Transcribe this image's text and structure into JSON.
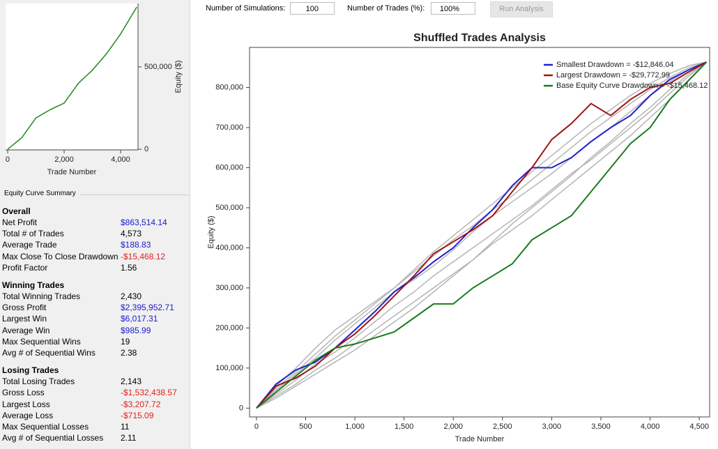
{
  "controls": {
    "simulations_label": "Number of Simulations:",
    "simulations_value": "100",
    "trades_label": "Number of Trades (%):",
    "trades_value": "100%",
    "run_button": "Run Analysis"
  },
  "summary": {
    "title": "Equity Curve Summary",
    "sections": [
      {
        "title": "Overall",
        "rows": [
          {
            "label": "Net Profit",
            "value": "$863,514.14",
            "color": "#1a1ad0"
          },
          {
            "label": "Total # of Trades",
            "value": "4,573",
            "color": "#000000"
          },
          {
            "label": "Average Trade",
            "value": "$188.83",
            "color": "#1a1ad0"
          },
          {
            "label": "Max Close To Close Drawdown",
            "value": "-$15,468.12",
            "color": "#e02020"
          },
          {
            "label": "Profit Factor",
            "value": "1.56",
            "color": "#000000"
          }
        ]
      },
      {
        "title": "Winning Trades",
        "rows": [
          {
            "label": "Total Winning Trades",
            "value": "2,430",
            "color": "#000000"
          },
          {
            "label": "Gross Profit",
            "value": "$2,395,952.71",
            "color": "#1a1ad0"
          },
          {
            "label": "Largest Win",
            "value": "$6,017.31",
            "color": "#1a1ad0"
          },
          {
            "label": "Average Win",
            "value": "$985.99",
            "color": "#1a1ad0"
          },
          {
            "label": "Max Sequential Wins",
            "value": "19",
            "color": "#000000"
          },
          {
            "label": "Avg # of Sequential Wins",
            "value": "2.38",
            "color": "#000000"
          }
        ]
      },
      {
        "title": "Losing Trades",
        "rows": [
          {
            "label": "Total Losing Trades",
            "value": "2,143",
            "color": "#000000"
          },
          {
            "label": "Gross Loss",
            "value": "-$1,532,438.57",
            "color": "#e02020"
          },
          {
            "label": "Largest Loss",
            "value": "-$3,207.72",
            "color": "#e02020"
          },
          {
            "label": "Average Loss",
            "value": "-$715.09",
            "color": "#e02020"
          },
          {
            "label": "Max Sequential Losses",
            "value": "11",
            "color": "#000000"
          },
          {
            "label": "Avg # of Sequential Losses",
            "value": "2.11",
            "color": "#000000"
          }
        ]
      }
    ]
  },
  "chart_data": [
    {
      "type": "line",
      "x_label": "Trade Number",
      "y_label": "Equity ($)",
      "y_axis_side": "right",
      "x": [
        0,
        500,
        1000,
        1500,
        2000,
        2500,
        3000,
        3500,
        4000,
        4573
      ],
      "series": [
        {
          "color": "#1a8a1a",
          "values": [
            0,
            70000,
            190000,
            240000,
            280000,
            400000,
            480000,
            580000,
            700000,
            863514
          ]
        }
      ],
      "xlim": [
        -74,
        4617
      ],
      "ylim": [
        -4000,
        885000
      ],
      "xticks": [
        0,
        {
          "value": 2000,
          "label": "2,000"
        },
        {
          "value": 4000,
          "label": "4,000"
        }
      ],
      "yticks": [
        0,
        {
          "value": 500000,
          "label": "500,000"
        }
      ]
    },
    {
      "type": "line",
      "title": "Shuffled Trades Analysis",
      "x_label": "Trade Number",
      "y_label": "Equity ($)",
      "y_axis_side": "left",
      "legend": "upper right",
      "x": [
        0,
        200,
        400,
        600,
        800,
        1000,
        1200,
        1400,
        1600,
        1800,
        2000,
        2200,
        2400,
        2600,
        2800,
        3000,
        3200,
        3400,
        3600,
        3800,
        4000,
        4200,
        4400,
        4573
      ],
      "series": [
        {
          "color": "#b4b4b4",
          "values": [
            0,
            55000,
            100000,
            150000,
            195000,
            230000,
            265000,
            300000,
            340000,
            380000,
            420000,
            455000,
            495000,
            530000,
            570000,
            610000,
            650000,
            690000,
            725000,
            760000,
            795000,
            825000,
            850000,
            863514
          ]
        },
        {
          "color": "#b4b4b4",
          "values": [
            0,
            30000,
            60000,
            95000,
            125000,
            160000,
            195000,
            230000,
            265000,
            300000,
            335000,
            370000,
            410000,
            445000,
            480000,
            520000,
            560000,
            600000,
            640000,
            680000,
            725000,
            770000,
            820000,
            863514
          ]
        },
        {
          "color": "#b4b4b4",
          "values": [
            0,
            45000,
            85000,
            125000,
            170000,
            210000,
            250000,
            290000,
            320000,
            355000,
            395000,
            440000,
            480000,
            515000,
            550000,
            585000,
            625000,
            665000,
            700000,
            740000,
            780000,
            815000,
            845000,
            863514
          ]
        },
        {
          "color": "#b4b4b4",
          "values": [
            0,
            35000,
            70000,
            110000,
            140000,
            175000,
            215000,
            255000,
            290000,
            330000,
            365000,
            400000,
            435000,
            470000,
            505000,
            545000,
            585000,
            620000,
            660000,
            700000,
            740000,
            785000,
            830000,
            863514
          ]
        },
        {
          "color": "#b4b4b4",
          "values": [
            0,
            50000,
            90000,
            135000,
            180000,
            220000,
            260000,
            300000,
            345000,
            390000,
            430000,
            470000,
            510000,
            550000,
            590000,
            630000,
            670000,
            710000,
            745000,
            780000,
            810000,
            835000,
            855000,
            863514
          ]
        },
        {
          "color": "#b4b4b4",
          "values": [
            0,
            25000,
            55000,
            85000,
            115000,
            145000,
            180000,
            215000,
            250000,
            290000,
            330000,
            370000,
            415000,
            460000,
            500000,
            540000,
            580000,
            625000,
            665000,
            710000,
            750000,
            795000,
            835000,
            863514
          ]
        },
        {
          "name": "Smallest Drawdown = -$12,846.04",
          "color": "#1f1fd0",
          "values": [
            0,
            60000,
            95000,
            115000,
            150000,
            195000,
            240000,
            290000,
            325000,
            365000,
            400000,
            450000,
            495000,
            555000,
            600000,
            600000,
            625000,
            665000,
            700000,
            730000,
            780000,
            820000,
            845000,
            863514
          ]
        },
        {
          "name": "Largest Drawdown = -$29,772.99",
          "color": "#a01414",
          "values": [
            0,
            55000,
            75000,
            105000,
            150000,
            185000,
            230000,
            280000,
            330000,
            385000,
            415000,
            445000,
            480000,
            540000,
            600000,
            670000,
            710000,
            760000,
            730000,
            770000,
            800000,
            810000,
            840000,
            863514
          ]
        },
        {
          "name": "Base Equity Curve Drawdown = -$15,468.12",
          "color": "#1a7a1a",
          "values": [
            0,
            40000,
            80000,
            120000,
            150000,
            160000,
            175000,
            190000,
            225000,
            260000,
            260000,
            300000,
            330000,
            360000,
            420000,
            450000,
            480000,
            540000,
            600000,
            660000,
            700000,
            770000,
            820000,
            863514
          ]
        }
      ],
      "xlim": [
        -70,
        4605
      ],
      "ylim": [
        -22000,
        900000
      ],
      "xticks": [
        0,
        500,
        {
          "value": 1000,
          "label": "1,000"
        },
        {
          "value": 1500,
          "label": "1,500"
        },
        {
          "value": 2000,
          "label": "2,000"
        },
        {
          "value": 2500,
          "label": "2,500"
        },
        {
          "value": 3000,
          "label": "3,000"
        },
        {
          "value": 3500,
          "label": "3,500"
        },
        {
          "value": 4000,
          "label": "4,000"
        },
        {
          "value": 4500,
          "label": "4,500"
        }
      ],
      "yticks": [
        0,
        {
          "value": 100000,
          "label": "100,000"
        },
        {
          "value": 200000,
          "label": "200,000"
        },
        {
          "value": 300000,
          "label": "300,000"
        },
        {
          "value": 400000,
          "label": "400,000"
        },
        {
          "value": 500000,
          "label": "500,000"
        },
        {
          "value": 600000,
          "label": "600,000"
        },
        {
          "value": 700000,
          "label": "700,000"
        },
        {
          "value": 800000,
          "label": "800,000"
        }
      ]
    }
  ]
}
